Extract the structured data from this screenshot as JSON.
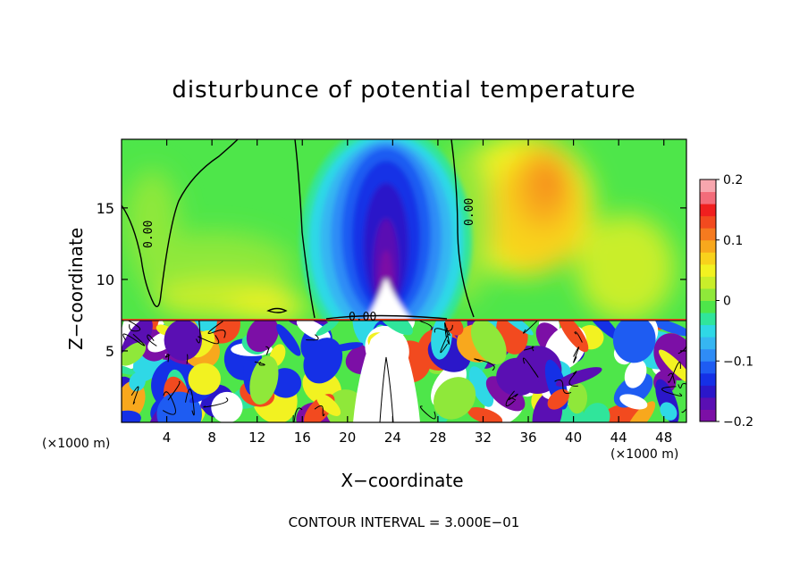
{
  "chart_data": {
    "type": "heatmap",
    "title": "disturbunce of potential temperature",
    "xlabel": "X−coordinate",
    "ylabel": "Z−coordinate",
    "x_unit_label": "(×1000 m)",
    "x_unit_label_right": "(×1000 m)",
    "footer": "CONTOUR INTERVAL = 3.000E−01",
    "xlim": [
      0,
      50
    ],
    "ylim": [
      0,
      19.8
    ],
    "x_ticks": [
      4,
      8,
      12,
      16,
      20,
      24,
      28,
      32,
      36,
      40,
      44,
      48
    ],
    "x_tick_labels": [
      "4",
      "8",
      "12",
      "16",
      "20",
      "24",
      "28",
      "32",
      "36",
      "40",
      "44",
      "48"
    ],
    "y_ticks": [
      5,
      10,
      15
    ],
    "y_tick_labels": [
      "5",
      "10",
      "15"
    ],
    "colorbar": {
      "range": [
        -0.2,
        0.2
      ],
      "ticks": [
        -0.2,
        -0.1,
        0,
        0.1,
        0.2
      ],
      "tick_labels": [
        "−0.2",
        "−0.1",
        "0",
        "0.1",
        "0.2"
      ],
      "colors": [
        "#7c0fa6",
        "#5a0fb3",
        "#2b17c9",
        "#1530e6",
        "#1e5cf2",
        "#2f8cf6",
        "#36b6f2",
        "#2fd8e6",
        "#30e59b",
        "#4ee64a",
        "#8fe83a",
        "#c9ee2a",
        "#f2f221",
        "#f8d21c",
        "#f8a81d",
        "#f57a1f",
        "#f24a1f",
        "#f01f1f",
        "#f36c7a",
        "#f7a6ae"
      ]
    },
    "contour_labels": [
      "0.00",
      "0.00",
      "0.00"
    ],
    "field_description_levels": {
      "upper_left_green": 0.0,
      "central_column_min": -0.2,
      "right_warm_max": 0.13
    }
  }
}
